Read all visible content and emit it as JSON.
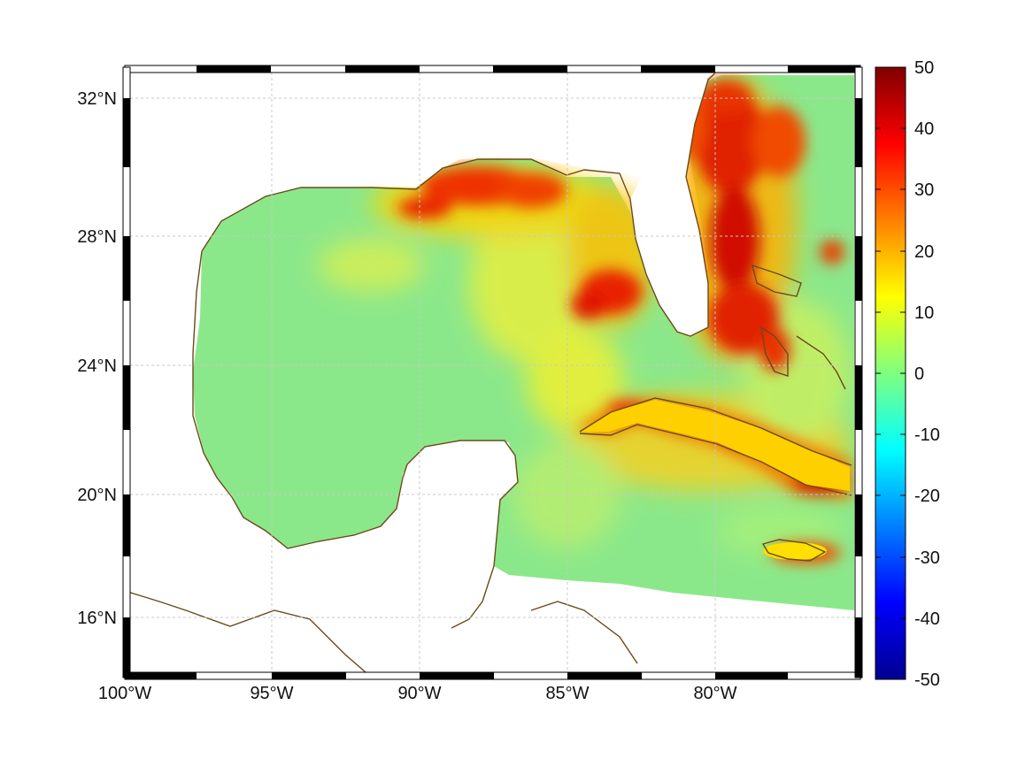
{
  "map": {
    "lon_ticks": [
      "100°W",
      "95°W",
      "90°W",
      "85°W",
      "80°W"
    ],
    "lat_ticks": [
      "32°N",
      "28°N",
      "24°N",
      "20°N",
      "16°N"
    ]
  },
  "colorbar": {
    "tick_labels": [
      "50",
      "40",
      "30",
      "20",
      "10",
      "0",
      "-10",
      "-20",
      "-30",
      "-40",
      "-50"
    ],
    "min": -50,
    "max": 50,
    "colormap": "jet"
  },
  "colors": {
    "coastline": "#6b4a1a",
    "land": "#ffffff",
    "ocean_low": "#7fe89a",
    "ocean_mid": "#ffe600",
    "hot": "#e82000",
    "grid": "#cccccc"
  }
}
